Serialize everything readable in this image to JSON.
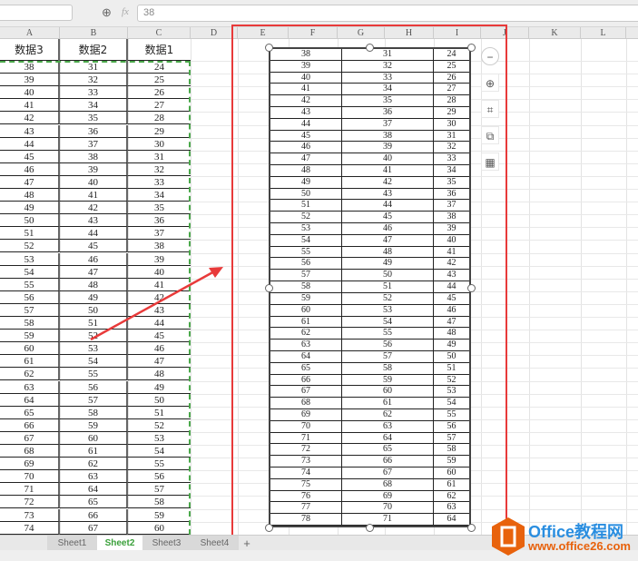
{
  "formula_bar": {
    "name_box": "",
    "zoom_icon": "zoom-icon",
    "fx_label": "fx",
    "value": "38"
  },
  "columns": [
    "A",
    "B",
    "C",
    "D",
    "E",
    "F",
    "G",
    "H",
    "I",
    "J",
    "K",
    "L"
  ],
  "table": {
    "headers": [
      "数据3",
      "数据2",
      "数据1"
    ],
    "col_a": [
      38,
      39,
      40,
      41,
      42,
      43,
      44,
      45,
      46,
      47,
      48,
      49,
      50,
      51,
      52,
      53,
      54,
      55,
      56,
      57,
      58,
      59,
      60,
      61,
      62,
      63,
      64,
      65,
      66,
      67,
      68,
      69,
      70,
      71,
      72,
      73,
      74
    ],
    "col_b": [
      31,
      32,
      33,
      34,
      35,
      36,
      37,
      38,
      39,
      40,
      41,
      42,
      43,
      44,
      45,
      46,
      47,
      48,
      49,
      50,
      51,
      52,
      53,
      54,
      55,
      56,
      57,
      58,
      59,
      60,
      61,
      62,
      63,
      64,
      65,
      66,
      67
    ],
    "col_c": [
      24,
      25,
      26,
      27,
      28,
      29,
      30,
      31,
      32,
      33,
      34,
      35,
      36,
      37,
      38,
      39,
      40,
      41,
      42,
      43,
      44,
      45,
      46,
      47,
      48,
      49,
      50,
      51,
      52,
      53,
      54,
      55,
      56,
      57,
      58,
      59,
      60
    ]
  },
  "picture": {
    "col_1": [
      38,
      39,
      40,
      41,
      42,
      43,
      44,
      45,
      46,
      47,
      48,
      49,
      50,
      51,
      52,
      53,
      54,
      55,
      56,
      57,
      58,
      59,
      60,
      61,
      62,
      63,
      64,
      65,
      66,
      67,
      68,
      69,
      70,
      71,
      72,
      73,
      74,
      75,
      76,
      77,
      78
    ],
    "col_2": [
      31,
      32,
      33,
      34,
      35,
      36,
      37,
      38,
      39,
      40,
      41,
      42,
      43,
      44,
      45,
      46,
      47,
      48,
      49,
      50,
      51,
      52,
      53,
      54,
      55,
      56,
      57,
      58,
      59,
      60,
      61,
      62,
      63,
      64,
      65,
      66,
      67,
      68,
      69,
      70,
      71
    ],
    "col_3": [
      24,
      25,
      26,
      27,
      28,
      29,
      30,
      31,
      32,
      33,
      34,
      35,
      36,
      37,
      38,
      39,
      40,
      41,
      42,
      43,
      44,
      45,
      46,
      47,
      48,
      49,
      50,
      51,
      52,
      53,
      54,
      55,
      56,
      57,
      58,
      59,
      60,
      61,
      62,
      63,
      64
    ]
  },
  "picture_tools": [
    "minus-icon",
    "zoom-in-icon",
    "crop-icon",
    "combine-icon",
    "layout-icon"
  ],
  "sheets": {
    "tabs": [
      "Sheet1",
      "Sheet2",
      "Sheet3",
      "Sheet4"
    ],
    "active": "Sheet2",
    "add": "+"
  },
  "logo": {
    "name": "Office教程网",
    "url": "www.office26.com"
  },
  "colors": {
    "highlight": "#e83a3a",
    "selection": "#4aa84a",
    "active_tab": "#3aa03a",
    "logo": "#e8620c"
  }
}
